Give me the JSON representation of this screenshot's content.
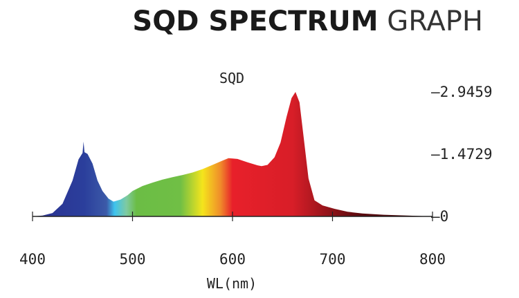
{
  "header": {
    "title_bold": "SQD SPECTRUM",
    "title_light": "GRAPH"
  },
  "chart_data": {
    "type": "area",
    "title": "SQD",
    "xlabel": "WL(nm)",
    "ylabel": "",
    "xlim": [
      400,
      800
    ],
    "ylim": [
      0,
      2.9459
    ],
    "x_ticks": [
      "400",
      "500",
      "600",
      "700",
      "800"
    ],
    "y_ticks": [
      "0",
      "1.4729",
      "2.9459"
    ],
    "y_tick_values": [
      0,
      1.4729,
      2.9459
    ],
    "grid": false,
    "fill": "wavelength-colored spectrum",
    "x": [
      400,
      410,
      420,
      430,
      440,
      446,
      450,
      451,
      452,
      455,
      460,
      465,
      470,
      476,
      481,
      488,
      495,
      500,
      510,
      520,
      530,
      540,
      550,
      560,
      570,
      580,
      590,
      596,
      605,
      615,
      625,
      629,
      635,
      642,
      648,
      654,
      659,
      663,
      667,
      671,
      676,
      682,
      690,
      702,
      715,
      730,
      751,
      775,
      800
    ],
    "y": [
      0.0,
      0.02,
      0.08,
      0.3,
      0.85,
      1.35,
      1.5,
      1.77,
      1.52,
      1.48,
      1.25,
      0.85,
      0.6,
      0.42,
      0.35,
      0.4,
      0.5,
      0.6,
      0.72,
      0.8,
      0.87,
      0.93,
      0.98,
      1.04,
      1.12,
      1.22,
      1.32,
      1.38,
      1.36,
      1.28,
      1.21,
      1.19,
      1.22,
      1.4,
      1.75,
      2.35,
      2.8,
      2.9459,
      2.7,
      1.9,
      0.9,
      0.38,
      0.26,
      0.18,
      0.11,
      0.07,
      0.04,
      0.02,
      0.0
    ]
  },
  "colors": {
    "axis": "#222222",
    "blue": "#2b3f9c",
    "cyan": "#3ec3ee",
    "green": "#6bbd45",
    "yellow": "#f4e51c",
    "orange": "#f08c2a",
    "red": "#e8202a",
    "dark_red": "#5a0a0e"
  }
}
